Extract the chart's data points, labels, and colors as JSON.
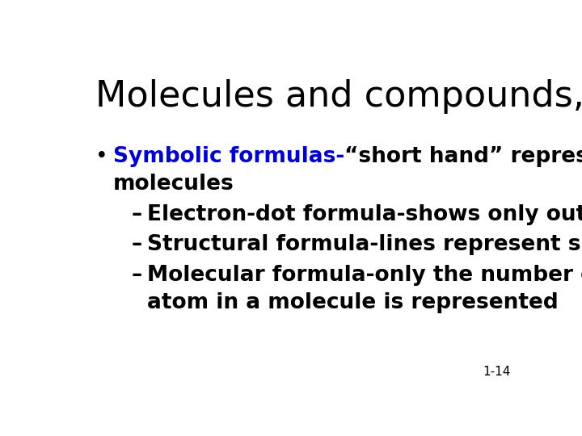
{
  "title": "Molecules and compounds, cont’d.",
  "title_color": "#000000",
  "title_fontsize": 32,
  "background_color": "#ffffff",
  "bullet_text_blue": "Symbolic formulas-",
  "bullet_text_blue_color": "#0000cc",
  "bullet_text_black1": "“short hand” representations of",
  "bullet_text_black2": "molecules",
  "text_color": "#000000",
  "body_fontsize": 19,
  "sub_bullet_line1": "Electron-dot formula-shows only outermost electrons",
  "sub_bullet_line2": "Structural formula-lines represent shared electrons",
  "sub_bullet_line3a": "Molecular formula-only the number of each type of",
  "sub_bullet_line3b": "atom in a molecule is represented",
  "page_number": "1-14",
  "page_num_fontsize": 11
}
